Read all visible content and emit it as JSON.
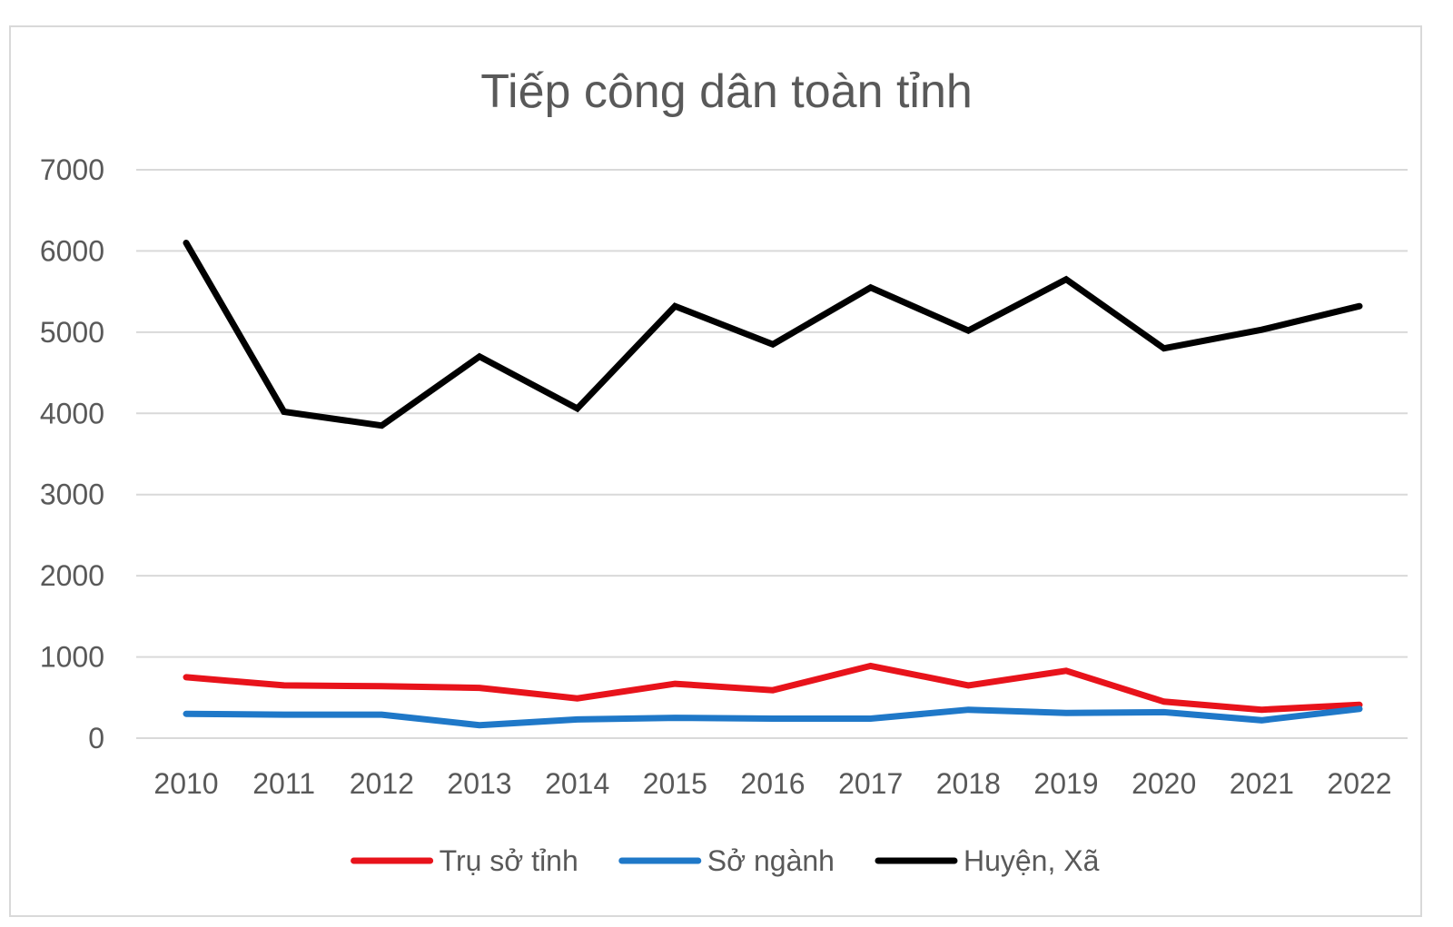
{
  "chart_data": {
    "type": "line",
    "title": "Tiếp công dân toàn tỉnh",
    "xlabel": "",
    "ylabel": "",
    "categories": [
      "2010",
      "2011",
      "2012",
      "2013",
      "2014",
      "2015",
      "2016",
      "2017",
      "2018",
      "2019",
      "2020",
      "2021",
      "2022"
    ],
    "ylim": [
      0,
      7000
    ],
    "yticks": [
      "0",
      "1000",
      "2000",
      "3000",
      "4000",
      "5000",
      "6000",
      "7000"
    ],
    "grid": true,
    "legend_position": "bottom",
    "series": [
      {
        "name": "Trụ sở tỉnh",
        "color": "#e8131b",
        "values": [
          750,
          650,
          640,
          620,
          490,
          670,
          590,
          890,
          650,
          830,
          450,
          350,
          410
        ]
      },
      {
        "name": "Sở ngành",
        "color": "#1f78c8",
        "values": [
          300,
          290,
          290,
          160,
          230,
          250,
          240,
          240,
          350,
          310,
          320,
          220,
          360
        ]
      },
      {
        "name": "Huyện, Xã",
        "color": "#000000",
        "values": [
          6100,
          4020,
          3850,
          4700,
          4060,
          5320,
          4850,
          5550,
          5020,
          5650,
          4800,
          5030,
          5320
        ]
      }
    ]
  }
}
